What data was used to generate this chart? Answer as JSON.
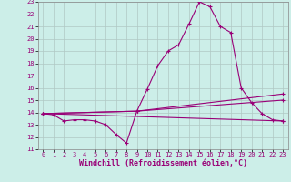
{
  "xlabel": "Windchill (Refroidissement éolien,°C)",
  "bg_color": "#cceee8",
  "grid_color": "#b0c8c4",
  "line_color": "#990077",
  "xlim": [
    -0.5,
    23.5
  ],
  "ylim": [
    11,
    23
  ],
  "yticks": [
    11,
    12,
    13,
    14,
    15,
    16,
    17,
    18,
    19,
    20,
    21,
    22,
    23
  ],
  "xticks": [
    0,
    1,
    2,
    3,
    4,
    5,
    6,
    7,
    8,
    9,
    10,
    11,
    12,
    13,
    14,
    15,
    16,
    17,
    18,
    19,
    20,
    21,
    22,
    23
  ],
  "series": [
    {
      "x": [
        0,
        1,
        2,
        3,
        4,
        5,
        6,
        7,
        8,
        9,
        10,
        11,
        12,
        13,
        14,
        15,
        16,
        17,
        18,
        19,
        20,
        21,
        22,
        23
      ],
      "y": [
        13.9,
        13.8,
        13.3,
        13.4,
        13.4,
        13.3,
        13.0,
        12.2,
        11.5,
        14.1,
        15.9,
        17.8,
        19.0,
        19.5,
        21.2,
        23.0,
        22.6,
        21.0,
        20.5,
        16.0,
        14.8,
        13.9,
        13.4,
        13.3
      ]
    },
    {
      "x": [
        0,
        23
      ],
      "y": [
        13.9,
        13.3
      ]
    },
    {
      "x": [
        0,
        9,
        23
      ],
      "y": [
        13.9,
        14.1,
        15.0
      ]
    },
    {
      "x": [
        0,
        9,
        23
      ],
      "y": [
        13.9,
        14.1,
        15.5
      ]
    }
  ],
  "tick_fontsize": 5,
  "xlabel_fontsize": 6
}
